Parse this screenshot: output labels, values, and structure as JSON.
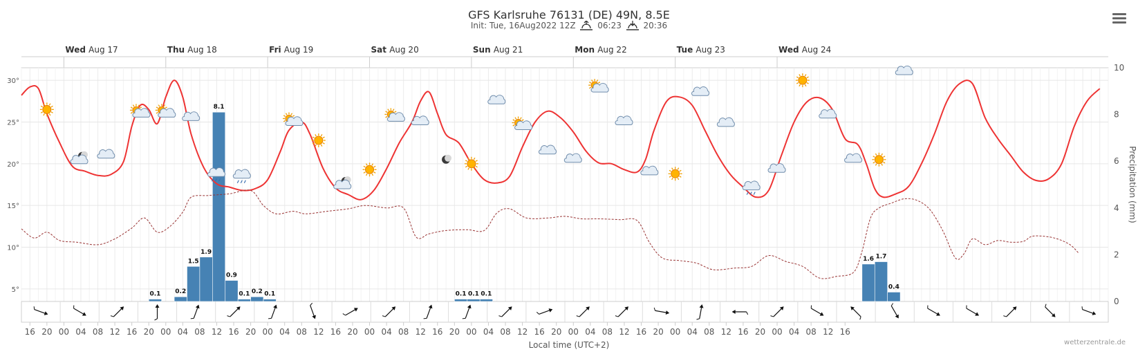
{
  "header": {
    "title": "GFS Karlsruhe 76131 (DE) 49N, 8.5E",
    "init": "Init: Tue, 16Aug2022 12Z",
    "sunrise": "06:23",
    "sunset": "20:36",
    "menu_icon": "hamburger-menu-icon"
  },
  "footer": {
    "credit": "wetterzentrale.de"
  },
  "chart_data": {
    "type": "line",
    "title": "GFS Karlsruhe 76131 (DE) 49N, 8.5E",
    "xlabel": "Local time (UTC+2)",
    "ylabel_right": "Precipitation (mm)",
    "x_start": "Tue Aug 16 14:00",
    "x_step_hours": 1,
    "temp_ylim": [
      3.5,
      31.5
    ],
    "precip_ylim": [
      0,
      10
    ],
    "temp_ticks": [
      5,
      10,
      15,
      20,
      25,
      30
    ],
    "temp_tick_labels": [
      "5°",
      "10°",
      "15°",
      "20°",
      "25°",
      "30°"
    ],
    "precip_ticks": [
      0,
      2,
      4,
      6,
      8,
      10
    ],
    "precip_tick_labels": [
      "0",
      "2",
      "4",
      "6",
      "8",
      "10"
    ],
    "day_labels": [
      {
        "day": "Wed",
        "date": "Aug 17",
        "hour": 10
      },
      {
        "day": "Thu",
        "date": "Aug 18",
        "hour": 34
      },
      {
        "day": "Fri",
        "date": "Aug 19",
        "hour": 58
      },
      {
        "day": "Sat",
        "date": "Aug 20",
        "hour": 82
      },
      {
        "day": "Sun",
        "date": "Aug 21",
        "hour": 106
      },
      {
        "day": "Mon",
        "date": "Aug 22",
        "hour": 130
      },
      {
        "day": "Tue",
        "date": "Aug 23",
        "hour": 154
      },
      {
        "day": "Wed",
        "date": "Aug 24",
        "hour": 178
      }
    ],
    "hour_ticks": {
      "first_hour": 2,
      "step": 4,
      "labels": [
        "16",
        "20",
        "00",
        "04",
        "08",
        "12",
        "16",
        "20",
        "00",
        "04",
        "08",
        "12",
        "16",
        "20",
        "00",
        "04",
        "08",
        "12",
        "16",
        "20",
        "00",
        "04",
        "08",
        "12",
        "16",
        "20",
        "00",
        "04",
        "08",
        "12",
        "16",
        "20",
        "00",
        "04",
        "08",
        "12",
        "16",
        "20",
        "00",
        "04",
        "08",
        "12",
        "16",
        "20",
        "00",
        "04",
        "08",
        "12",
        "16"
      ]
    },
    "series": [
      {
        "name": "Temperature",
        "style": "solid",
        "color": "#ee3333",
        "points": [
          [
            0,
            28.2
          ],
          [
            2,
            29.2
          ],
          [
            4,
            29.0
          ],
          [
            6,
            26.0
          ],
          [
            9,
            22.5
          ],
          [
            12,
            19.7
          ],
          [
            15,
            19.1
          ],
          [
            18,
            18.6
          ],
          [
            21,
            18.7
          ],
          [
            24,
            20.2
          ],
          [
            26,
            24.5
          ],
          [
            28,
            27.0
          ],
          [
            30,
            26.5
          ],
          [
            32,
            24.8
          ],
          [
            34,
            28.0
          ],
          [
            36,
            30.0
          ],
          [
            38,
            28.0
          ],
          [
            40,
            23.5
          ],
          [
            43,
            19.5
          ],
          [
            46,
            17.6
          ],
          [
            49,
            17.2
          ],
          [
            52,
            16.8
          ],
          [
            55,
            17.0
          ],
          [
            58,
            18.1
          ],
          [
            61,
            21.5
          ],
          [
            63,
            24.0
          ],
          [
            66,
            25.0
          ],
          [
            68,
            23.5
          ],
          [
            71,
            19.5
          ],
          [
            74,
            17.1
          ],
          [
            77,
            16.3
          ],
          [
            80,
            15.7
          ],
          [
            83,
            16.8
          ],
          [
            86,
            19.4
          ],
          [
            89,
            22.5
          ],
          [
            92,
            25.0
          ],
          [
            94,
            27.5
          ],
          [
            96,
            28.6
          ],
          [
            98,
            26.0
          ],
          [
            100,
            23.5
          ],
          [
            103,
            22.5
          ],
          [
            106,
            20.0
          ],
          [
            109,
            18.1
          ],
          [
            112,
            17.7
          ],
          [
            115,
            18.5
          ],
          [
            118,
            22.0
          ],
          [
            121,
            25.0
          ],
          [
            124,
            26.3
          ],
          [
            127,
            25.5
          ],
          [
            130,
            23.8
          ],
          [
            133,
            21.5
          ],
          [
            136,
            20.1
          ],
          [
            139,
            20.0
          ],
          [
            142,
            19.3
          ],
          [
            145,
            19.0
          ],
          [
            147,
            20.5
          ],
          [
            149,
            24.0
          ],
          [
            152,
            27.5
          ],
          [
            155,
            28.0
          ],
          [
            158,
            27.0
          ],
          [
            161,
            24.0
          ],
          [
            164,
            21.0
          ],
          [
            167,
            18.7
          ],
          [
            170,
            17.2
          ],
          [
            173,
            16.0
          ],
          [
            176,
            16.8
          ],
          [
            179,
            21.0
          ],
          [
            182,
            25.0
          ],
          [
            185,
            27.4
          ],
          [
            188,
            27.9
          ],
          [
            191,
            26.5
          ],
          [
            194,
            23.0
          ],
          [
            197,
            22.3
          ],
          [
            199,
            20.0
          ],
          [
            201,
            17.0
          ],
          [
            203,
            16.0
          ],
          [
            206,
            16.4
          ],
          [
            209,
            17.3
          ],
          [
            212,
            20.0
          ],
          [
            215,
            23.5
          ],
          [
            218,
            27.5
          ],
          [
            221,
            29.6
          ],
          [
            224,
            29.6
          ],
          [
            227,
            25.5
          ],
          [
            230,
            23.0
          ],
          [
            233,
            21.0
          ],
          [
            236,
            19.0
          ],
          [
            239,
            18.0
          ],
          [
            242,
            18.2
          ],
          [
            245,
            20.0
          ],
          [
            248,
            24.5
          ],
          [
            251,
            27.5
          ],
          [
            254,
            29.0
          ]
        ]
      },
      {
        "name": "Dew point",
        "style": "dashed",
        "color": "#993333",
        "points": [
          [
            0,
            12.2
          ],
          [
            3,
            11.1
          ],
          [
            6,
            11.8
          ],
          [
            9,
            10.8
          ],
          [
            13,
            10.6
          ],
          [
            18,
            10.3
          ],
          [
            22,
            11.0
          ],
          [
            26,
            12.3
          ],
          [
            29,
            13.5
          ],
          [
            32,
            11.8
          ],
          [
            35,
            12.5
          ],
          [
            38,
            14.2
          ],
          [
            40,
            16.0
          ],
          [
            44,
            16.2
          ],
          [
            49,
            16.4
          ],
          [
            54,
            16.8
          ],
          [
            57,
            15.0
          ],
          [
            60,
            14.0
          ],
          [
            64,
            14.3
          ],
          [
            67,
            14.0
          ],
          [
            72,
            14.3
          ],
          [
            77,
            14.6
          ],
          [
            81,
            15.0
          ],
          [
            86,
            14.7
          ],
          [
            90,
            14.7
          ],
          [
            93,
            11.2
          ],
          [
            96,
            11.6
          ],
          [
            100,
            12.0
          ],
          [
            105,
            12.1
          ],
          [
            109,
            12.0
          ],
          [
            112,
            14.1
          ],
          [
            115,
            14.6
          ],
          [
            119,
            13.5
          ],
          [
            124,
            13.5
          ],
          [
            128,
            13.7
          ],
          [
            132,
            13.4
          ],
          [
            136,
            13.4
          ],
          [
            141,
            13.3
          ],
          [
            145,
            13.2
          ],
          [
            148,
            10.5
          ],
          [
            151,
            8.7
          ],
          [
            155,
            8.4
          ],
          [
            159,
            8.1
          ],
          [
            163,
            7.3
          ],
          [
            168,
            7.5
          ],
          [
            172,
            7.7
          ],
          [
            176,
            9.0
          ],
          [
            180,
            8.3
          ],
          [
            184,
            7.7
          ],
          [
            188,
            6.3
          ],
          [
            192,
            6.5
          ],
          [
            196,
            7.0
          ],
          [
            198,
            9.5
          ],
          [
            200,
            13.5
          ],
          [
            202,
            14.7
          ],
          [
            205,
            15.3
          ],
          [
            208,
            15.8
          ],
          [
            211,
            15.6
          ],
          [
            214,
            14.5
          ],
          [
            217,
            12.0
          ],
          [
            220,
            8.7
          ],
          [
            222,
            9.2
          ],
          [
            224,
            11.0
          ],
          [
            227,
            10.3
          ],
          [
            230,
            10.8
          ],
          [
            233,
            10.6
          ],
          [
            236,
            10.7
          ],
          [
            238,
            11.3
          ],
          [
            241,
            11.3
          ],
          [
            244,
            11.0
          ],
          [
            247,
            10.3
          ],
          [
            249,
            9.3
          ]
        ]
      }
    ],
    "precipitation": [
      {
        "start": 30,
        "end": 33,
        "value": 0.1,
        "label": "0.1"
      },
      {
        "start": 36,
        "end": 39,
        "value": 0.2,
        "label": "0.2"
      },
      {
        "start": 39,
        "end": 42,
        "value": 1.5,
        "label": "1.5"
      },
      {
        "start": 42,
        "end": 45,
        "value": 1.9,
        "label": "1.9"
      },
      {
        "start": 45,
        "end": 48,
        "value": 8.1,
        "label": "8.1"
      },
      {
        "start": 48,
        "end": 51,
        "value": 0.9,
        "label": "0.9"
      },
      {
        "start": 51,
        "end": 54,
        "value": 0.1,
        "label": "0.1"
      },
      {
        "start": 54,
        "end": 57,
        "value": 0.2,
        "label": "0.2"
      },
      {
        "start": 57,
        "end": 60,
        "value": 0.1,
        "label": "0.1"
      },
      {
        "start": 102,
        "end": 105,
        "value": 0.1,
        "label": "0.1"
      },
      {
        "start": 105,
        "end": 108,
        "value": 0.1,
        "label": "0.1"
      },
      {
        "start": 108,
        "end": 111,
        "value": 0.1,
        "label": "0.1"
      },
      {
        "start": 198,
        "end": 201,
        "value": 1.6,
        "label": "1.6"
      },
      {
        "start": 201,
        "end": 204,
        "value": 1.7,
        "label": "1.7"
      },
      {
        "start": 204,
        "end": 207,
        "value": 0.4,
        "label": "0.4"
      }
    ],
    "weather_icons": [
      {
        "hour": 6,
        "temp": 26.5,
        "kind": "sun"
      },
      {
        "hour": 14,
        "temp": 20.5,
        "kind": "moon-cloud"
      },
      {
        "hour": 20,
        "temp": 21.0,
        "kind": "cloud"
      },
      {
        "hour": 28,
        "temp": 26.0,
        "kind": "sun-cloud"
      },
      {
        "hour": 34,
        "temp": 26.0,
        "kind": "sun-cloud"
      },
      {
        "hour": 40,
        "temp": 25.5,
        "kind": "cloud"
      },
      {
        "hour": 46,
        "temp": 18.8,
        "kind": "rain-cloud"
      },
      {
        "hour": 52,
        "temp": 18.6,
        "kind": "rain-cloud"
      },
      {
        "hour": 64,
        "temp": 25.0,
        "kind": "sun-cloud"
      },
      {
        "hour": 70,
        "temp": 22.8,
        "kind": "sun"
      },
      {
        "hour": 76,
        "temp": 17.5,
        "kind": "moon-cloud"
      },
      {
        "hour": 82,
        "temp": 19.3,
        "kind": "sun"
      },
      {
        "hour": 88,
        "temp": 25.5,
        "kind": "sun-cloud"
      },
      {
        "hour": 94,
        "temp": 25.0,
        "kind": "cloud"
      },
      {
        "hour": 100,
        "temp": 20.5,
        "kind": "moon"
      },
      {
        "hour": 106,
        "temp": 20.0,
        "kind": "sun"
      },
      {
        "hour": 112,
        "temp": 27.5,
        "kind": "cloud"
      },
      {
        "hour": 118,
        "temp": 24.5,
        "kind": "sun-cloud"
      },
      {
        "hour": 124,
        "temp": 21.5,
        "kind": "cloud"
      },
      {
        "hour": 130,
        "temp": 20.5,
        "kind": "cloud"
      },
      {
        "hour": 136,
        "temp": 29.0,
        "kind": "sun-cloud"
      },
      {
        "hour": 142,
        "temp": 25.0,
        "kind": "cloud"
      },
      {
        "hour": 148,
        "temp": 19.0,
        "kind": "cloud"
      },
      {
        "hour": 154,
        "temp": 18.8,
        "kind": "sun"
      },
      {
        "hour": 160,
        "temp": 28.5,
        "kind": "cloud"
      },
      {
        "hour": 166,
        "temp": 24.8,
        "kind": "cloud"
      },
      {
        "hour": 172,
        "temp": 17.2,
        "kind": "rain-cloud"
      },
      {
        "hour": 178,
        "temp": 19.3,
        "kind": "cloud"
      },
      {
        "hour": 184,
        "temp": 30.0,
        "kind": "sun"
      },
      {
        "hour": 190,
        "temp": 25.8,
        "kind": "cloud"
      },
      {
        "hour": 196,
        "temp": 20.5,
        "kind": "cloud"
      },
      {
        "hour": 202,
        "temp": 20.5,
        "kind": "sun"
      },
      {
        "hour": 208,
        "temp": 31.0,
        "kind": "cloud"
      }
    ],
    "wind_directions_deg": [
      290,
      300,
      225,
      180,
      200,
      225,
      200,
      340,
      240,
      225,
      200,
      200,
      225,
      250,
      225,
      225,
      280,
      190,
      90,
      225,
      300,
      135,
      330,
      300,
      300,
      225,
      315,
      290
    ]
  }
}
